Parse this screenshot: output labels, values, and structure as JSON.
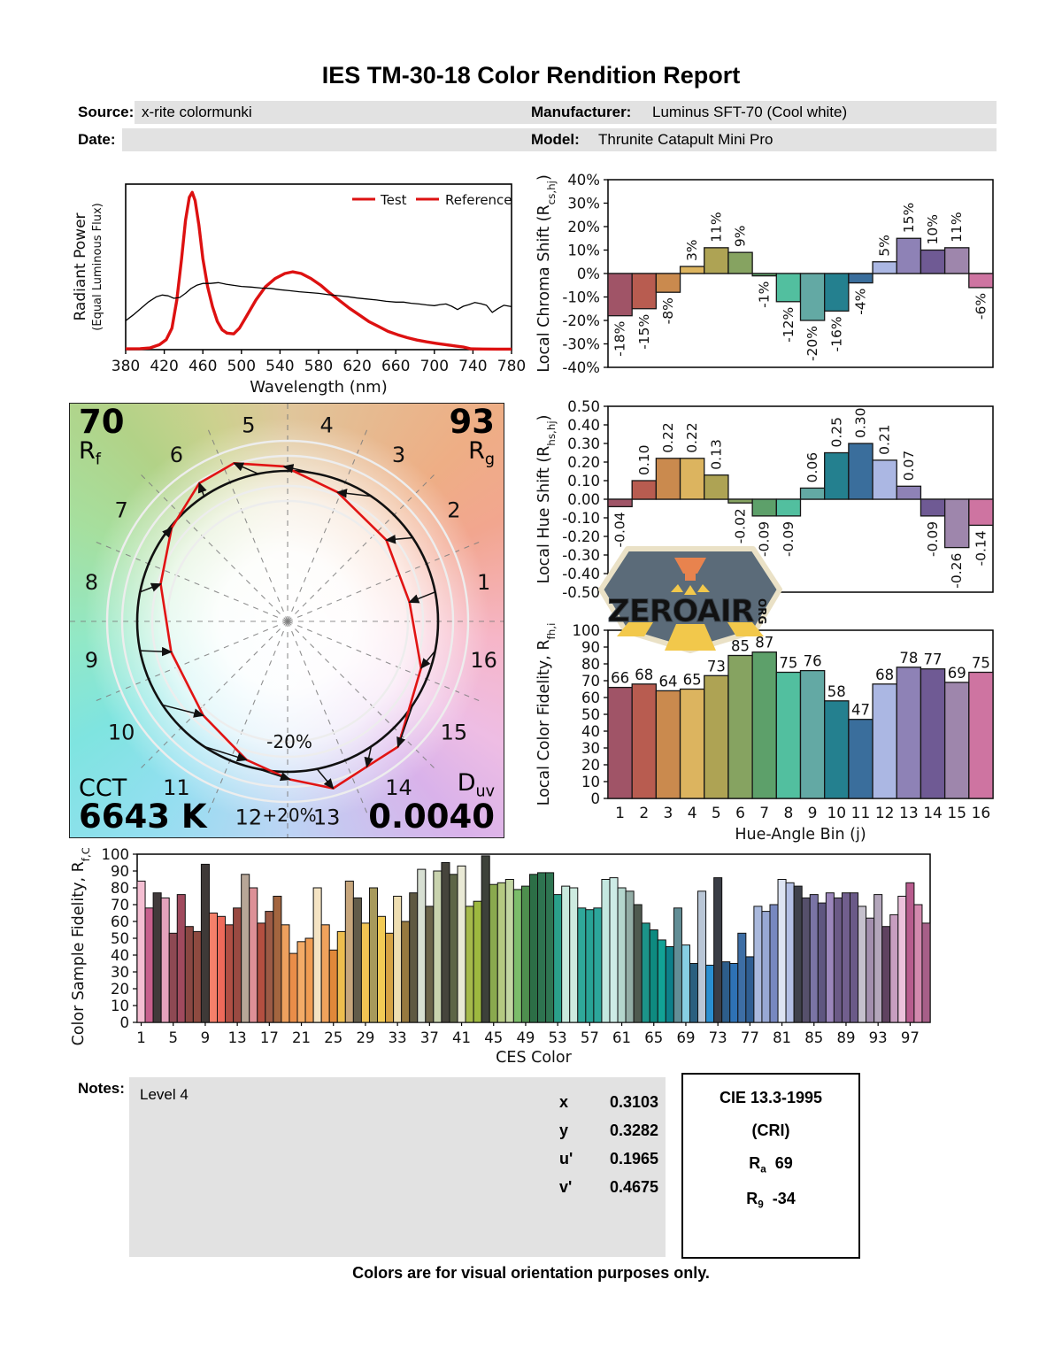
{
  "report": {
    "title": "IES TM-30-18 Color Rendition Report",
    "footer": "Colors are for visual orientation purposes only."
  },
  "header": {
    "source_label": "Source:",
    "source_value": "x-rite colormunki",
    "date_label": "Date:",
    "date_value": "",
    "manufacturer_label": "Manufacturer:",
    "manufacturer_value": "Luminus SFT-70 (Cool white)",
    "model_label": "Model:",
    "model_value": "Thrunite Catapult Mini Pro"
  },
  "summary": {
    "rf_value": "70",
    "rf_label_base": "R",
    "rf_label_sub": "f",
    "rg_value": "93",
    "rg_label_base": "R",
    "rg_label_sub": "g",
    "cct_label": "CCT",
    "cct_value": "6643 K",
    "duv_label_base": "D",
    "duv_label_sub": "uv",
    "duv_value": "0.0040"
  },
  "notes": {
    "label": "Notes:",
    "value": "Level 4"
  },
  "chromaticity": {
    "x_label": "x",
    "x_value": "0.3103",
    "y_label": "y",
    "y_value": "0.3282",
    "u_label": "u'",
    "u_value": "0.1965",
    "v_label": "v'",
    "v_value": "0.4675"
  },
  "cri": {
    "title": "CIE 13.3-1995",
    "subtitle": "(CRI)",
    "ra_base": "R",
    "ra_sub": "a",
    "ra_value": "69",
    "r9_base": "R",
    "r9_sub": "9",
    "r9_value": "-34"
  },
  "watermark": {
    "text": "ZEROAIR",
    "org": "ORG"
  },
  "bin_colors": [
    "#a05467",
    "#b85c50",
    "#ca8a4e",
    "#dcb45f",
    "#aea354",
    "#86a361",
    "#5da06a",
    "#52bf9f",
    "#63a9a4",
    "#24808f",
    "#3a6e9c",
    "#abb7e3",
    "#8e82b6",
    "#6f5a94",
    "#9e86ac",
    "#ce74a1"
  ],
  "chart_data": [
    {
      "id": "spd",
      "type": "line",
      "xlabel": "Wavelength (nm)",
      "ylabel_line1": "Radiant Power",
      "ylabel_line2": "(Equal Luminous Flux)",
      "xlim": [
        380,
        780
      ],
      "xticks": [
        380,
        420,
        460,
        500,
        540,
        580,
        620,
        660,
        700,
        740,
        780
      ],
      "grid": false,
      "legend_position": "top-right",
      "legend": [
        {
          "label": "Test",
          "line_color": "#dd1111",
          "text_color": "#dd1111"
        },
        {
          "label": "Reference",
          "line_color": "#dd1111",
          "text_color": "#000000"
        }
      ],
      "series": [
        {
          "name": "Test",
          "color": "#dd1111",
          "width": 3.4,
          "points": [
            [
              380,
              0.005
            ],
            [
              395,
              0.006
            ],
            [
              405,
              0.01
            ],
            [
              415,
              0.03
            ],
            [
              422,
              0.06
            ],
            [
              428,
              0.13
            ],
            [
              433,
              0.3
            ],
            [
              438,
              0.55
            ],
            [
              442,
              0.78
            ],
            [
              446,
              0.92
            ],
            [
              449,
              0.95
            ],
            [
              452,
              0.9
            ],
            [
              456,
              0.75
            ],
            [
              460,
              0.55
            ],
            [
              465,
              0.38
            ],
            [
              470,
              0.26
            ],
            [
              475,
              0.17
            ],
            [
              480,
              0.12
            ],
            [
              485,
              0.1
            ],
            [
              492,
              0.095
            ],
            [
              498,
              0.13
            ],
            [
              505,
              0.2
            ],
            [
              515,
              0.3
            ],
            [
              525,
              0.38
            ],
            [
              535,
              0.43
            ],
            [
              545,
              0.46
            ],
            [
              553,
              0.47
            ],
            [
              562,
              0.46
            ],
            [
              572,
              0.43
            ],
            [
              582,
              0.39
            ],
            [
              592,
              0.34
            ],
            [
              602,
              0.295
            ],
            [
              612,
              0.25
            ],
            [
              622,
              0.21
            ],
            [
              632,
              0.17
            ],
            [
              642,
              0.14
            ],
            [
              652,
              0.11
            ],
            [
              662,
              0.09
            ],
            [
              672,
              0.072
            ],
            [
              682,
              0.058
            ],
            [
              692,
              0.047
            ],
            [
              702,
              0.038
            ],
            [
              712,
              0.03
            ],
            [
              722,
              0.022
            ],
            [
              730,
              0.016
            ],
            [
              738,
              0.005
            ],
            [
              750,
              0.004
            ],
            [
              765,
              0.003
            ],
            [
              780,
              0.003
            ]
          ]
        },
        {
          "name": "Reference",
          "color": "#000000",
          "width": 1.3,
          "points": [
            [
              380,
              0.175
            ],
            [
              388,
              0.21
            ],
            [
              396,
              0.25
            ],
            [
              404,
              0.29
            ],
            [
              412,
              0.32
            ],
            [
              418,
              0.33
            ],
            [
              424,
              0.325
            ],
            [
              430,
              0.31
            ],
            [
              436,
              0.315
            ],
            [
              442,
              0.34
            ],
            [
              448,
              0.37
            ],
            [
              454,
              0.39
            ],
            [
              460,
              0.4
            ],
            [
              468,
              0.4
            ],
            [
              476,
              0.405
            ],
            [
              484,
              0.395
            ],
            [
              492,
              0.388
            ],
            [
              500,
              0.382
            ],
            [
              510,
              0.378
            ],
            [
              520,
              0.372
            ],
            [
              530,
              0.37
            ],
            [
              540,
              0.362
            ],
            [
              550,
              0.356
            ],
            [
              560,
              0.35
            ],
            [
              570,
              0.345
            ],
            [
              580,
              0.34
            ],
            [
              590,
              0.332
            ],
            [
              600,
              0.326
            ],
            [
              610,
              0.32
            ],
            [
              620,
              0.312
            ],
            [
              630,
              0.306
            ],
            [
              640,
              0.3
            ],
            [
              650,
              0.292
            ],
            [
              660,
              0.287
            ],
            [
              668,
              0.287
            ],
            [
              676,
              0.28
            ],
            [
              684,
              0.276
            ],
            [
              692,
              0.27
            ],
            [
              700,
              0.266
            ],
            [
              706,
              0.272
            ],
            [
              712,
              0.276
            ],
            [
              718,
              0.262
            ],
            [
              724,
              0.242
            ],
            [
              730,
              0.262
            ],
            [
              736,
              0.272
            ],
            [
              742,
              0.285
            ],
            [
              748,
              0.278
            ],
            [
              754,
              0.268
            ],
            [
              760,
              0.225
            ],
            [
              766,
              0.248
            ],
            [
              772,
              0.268
            ],
            [
              778,
              0.262
            ],
            [
              780,
              0.26
            ]
          ]
        }
      ]
    },
    {
      "id": "chroma",
      "type": "bar",
      "ylabel_pre": "Local Chroma Shift (R",
      "ylabel_sub": "cs,hj",
      "ylabel_post": ")",
      "ylim": [
        -40,
        40
      ],
      "yticks": [
        [
          40,
          "40%"
        ],
        [
          30,
          "30%"
        ],
        [
          20,
          "20%"
        ],
        [
          10,
          "10%"
        ],
        [
          0,
          "0%"
        ],
        [
          -10,
          "-10%"
        ],
        [
          -20,
          "-20%"
        ],
        [
          -30,
          "-30%"
        ],
        [
          -40,
          "-40%"
        ]
      ],
      "categories": [
        1,
        2,
        3,
        4,
        5,
        6,
        7,
        8,
        9,
        10,
        11,
        12,
        13,
        14,
        15,
        16
      ],
      "values": [
        -18,
        -15,
        -8,
        3,
        11,
        9,
        -1,
        -12,
        -20,
        -16,
        -4,
        5,
        15,
        10,
        11,
        -6
      ],
      "labels": [
        "-18%",
        "-15%",
        "-8%",
        "3%",
        "11%",
        "9%",
        "-1%",
        "-12%",
        "-20%",
        "-16%",
        "-4%",
        "5%",
        "15%",
        "10%",
        "11%",
        "-6%"
      ],
      "label_style": "rotated"
    },
    {
      "id": "hue",
      "type": "bar",
      "ylabel_pre": "Local Hue Shift (R",
      "ylabel_sub": "hs,hj",
      "ylabel_post": ")",
      "ylim": [
        -0.5,
        0.5
      ],
      "yticks": [
        [
          0.5,
          "0.50"
        ],
        [
          0.4,
          "0.40"
        ],
        [
          0.3,
          "0.30"
        ],
        [
          0.2,
          "0.20"
        ],
        [
          0.1,
          "0.10"
        ],
        [
          0,
          "0.00"
        ],
        [
          -0.1,
          "-0.10"
        ],
        [
          -0.2,
          "-0.20"
        ],
        [
          -0.3,
          "-0.30"
        ],
        [
          -0.4,
          "-0.40"
        ],
        [
          -0.5,
          "-0.50"
        ]
      ],
      "categories": [
        1,
        2,
        3,
        4,
        5,
        6,
        7,
        8,
        9,
        10,
        11,
        12,
        13,
        14,
        15,
        16
      ],
      "values": [
        -0.04,
        0.1,
        0.22,
        0.22,
        0.13,
        -0.02,
        -0.09,
        -0.09,
        0.06,
        0.25,
        0.3,
        0.21,
        0.07,
        -0.09,
        -0.26,
        -0.14
      ],
      "labels": [
        "-0.04",
        "0.10",
        "0.22",
        "0.22",
        "0.13",
        "-0.02",
        "-0.09",
        "-0.09",
        "0.06",
        "0.25",
        "0.30",
        "0.21",
        "0.07",
        "-0.09",
        "-0.26",
        "-0.14"
      ],
      "label_style": "rotated"
    },
    {
      "id": "fidelity",
      "type": "bar",
      "ylabel_pre": "Local Color Fidelity, R",
      "ylabel_sub": "fh,i",
      "ylabel_post": "",
      "xlabel": "Hue-Angle Bin (j)",
      "ylim": [
        0,
        100
      ],
      "yticks": [
        [
          100,
          "100"
        ],
        [
          90,
          "90"
        ],
        [
          80,
          "80"
        ],
        [
          70,
          "70"
        ],
        [
          60,
          "60"
        ],
        [
          50,
          "50"
        ],
        [
          40,
          "40"
        ],
        [
          30,
          "30"
        ],
        [
          20,
          "20"
        ],
        [
          10,
          "10"
        ],
        [
          0,
          "0"
        ]
      ],
      "categories": [
        "1",
        "2",
        "3",
        "4",
        "5",
        "6",
        "7",
        "8",
        "9",
        "10",
        "11",
        "12",
        "13",
        "14",
        "15",
        "16"
      ],
      "values": [
        66,
        68,
        64,
        65,
        73,
        85,
        87,
        75,
        76,
        58,
        47,
        68,
        78,
        77,
        69,
        75
      ],
      "labels": [
        "66",
        "68",
        "64",
        "65",
        "73",
        "85",
        "87",
        "75",
        "76",
        "58",
        "47",
        "68",
        "78",
        "77",
        "69",
        "75"
      ],
      "label_style": "top"
    },
    {
      "id": "ces",
      "type": "bar",
      "ylabel_pre": "Color Sample Fidelity, R",
      "ylabel_sub": "f,CESi",
      "ylabel_post": "",
      "xlabel": "CES Color",
      "ylim": [
        0,
        100
      ],
      "yticks": [
        [
          100,
          "100"
        ],
        [
          90,
          "90"
        ],
        [
          80,
          "80"
        ],
        [
          70,
          "70"
        ],
        [
          60,
          "60"
        ],
        [
          50,
          "50"
        ],
        [
          40,
          "40"
        ],
        [
          30,
          "30"
        ],
        [
          20,
          "20"
        ],
        [
          10,
          "10"
        ],
        [
          0,
          "0"
        ]
      ],
      "xtick_every": 4,
      "values": [
        84,
        68,
        77,
        74,
        53,
        76,
        57,
        54,
        94,
        65,
        63,
        58,
        68,
        88,
        80,
        59,
        66,
        75,
        58,
        41,
        48,
        50,
        80,
        58,
        43,
        54,
        84,
        74,
        59,
        80,
        63,
        53,
        75,
        60,
        77,
        91,
        69,
        90,
        95,
        88,
        93,
        69,
        72,
        99,
        82,
        83,
        85,
        79,
        81,
        88,
        89,
        89,
        76,
        81,
        80,
        68,
        67,
        68,
        85,
        86,
        80,
        78,
        70,
        59,
        55,
        49,
        45,
        68,
        46,
        35,
        78,
        34,
        86,
        36,
        35,
        53,
        39,
        69,
        66,
        70,
        85,
        83,
        81,
        74,
        76,
        71,
        77,
        74,
        77,
        77,
        69,
        62,
        76,
        57,
        64,
        75,
        83,
        70,
        59
      ],
      "colors": [
        "#f4bed2",
        "#c75f8d",
        "#413a3b",
        "#e4a2bc",
        "#8e4953",
        "#a04a5e",
        "#8a4742",
        "#8e4a40",
        "#3e3937",
        "#f5806a",
        "#ee6a5a",
        "#b04f44",
        "#9a4a42",
        "#b7a697",
        "#dd9097",
        "#b34f40",
        "#9c5a45",
        "#a3653f",
        "#eda05e",
        "#e98d49",
        "#f3ab67",
        "#ef9c53",
        "#f4e3c3",
        "#f0a25c",
        "#e0883a",
        "#edbd4e",
        "#c7a67c",
        "#625c4a",
        "#f0c353",
        "#a89a5c",
        "#f2cb55",
        "#d6a344",
        "#eedeb2",
        "#96793f",
        "#5f5941",
        "#d7dfd2",
        "#6a6349",
        "#c9d3ae",
        "#46443c",
        "#5d6547",
        "#e9e9d5",
        "#a5b94a",
        "#9db83f",
        "#3d413a",
        "#8aa94e",
        "#b4c981",
        "#c2d6a2",
        "#7bbd6a",
        "#4e8e4e",
        "#2c6e46",
        "#2e7350",
        "#2f7552",
        "#2aa08a",
        "#c9e9dd",
        "#cdebe0",
        "#2fa89a",
        "#28a396",
        "#2ca69b",
        "#c4e8e0",
        "#cdece6",
        "#b4d6cd",
        "#93ada6",
        "#4f5a50",
        "#1c9489",
        "#0e8a80",
        "#12a296",
        "#0d7f89",
        "#628e96",
        "#86cfe3",
        "#2a5f7f",
        "#b9c6d6",
        "#2a8fd0",
        "#3a3d45",
        "#2d5d8a",
        "#2e72b5",
        "#3d6ea5",
        "#2f5e92",
        "#aab9dd",
        "#98a8d4",
        "#7788c0",
        "#dde4f2",
        "#b3bfe4",
        "#3f414b",
        "#56506b",
        "#7a74a5",
        "#5f5680",
        "#9b86bb",
        "#6b5a86",
        "#715f8d",
        "#6a5a88",
        "#c5c0cd",
        "#a38fae",
        "#b3a6bb",
        "#5f4260",
        "#c79ec0",
        "#ecc2dc",
        "#b85c8e",
        "#d389ae",
        "#a75f88"
      ]
    },
    {
      "id": "cvg",
      "type": "color-vector-graphic",
      "bin_labels": [
        "1",
        "2",
        "3",
        "4",
        "5",
        "6",
        "7",
        "8",
        "9",
        "10",
        "11",
        "12",
        "13",
        "14",
        "15",
        "16"
      ],
      "rcs": [
        -0.18,
        -0.15,
        -0.08,
        0.03,
        0.11,
        0.09,
        -0.01,
        -0.12,
        -0.2,
        -0.16,
        -0.04,
        0.05,
        0.15,
        0.1,
        0.11,
        -0.06
      ],
      "rhs": [
        -0.04,
        0.1,
        0.22,
        0.22,
        0.13,
        -0.02,
        -0.09,
        -0.09,
        0.06,
        0.25,
        0.3,
        0.21,
        0.07,
        -0.09,
        -0.26,
        -0.14
      ],
      "ring_label_inner": "-20%",
      "ring_label_outer": "+20%",
      "reference_color": "#111111",
      "test_color": "#e11414"
    }
  ]
}
